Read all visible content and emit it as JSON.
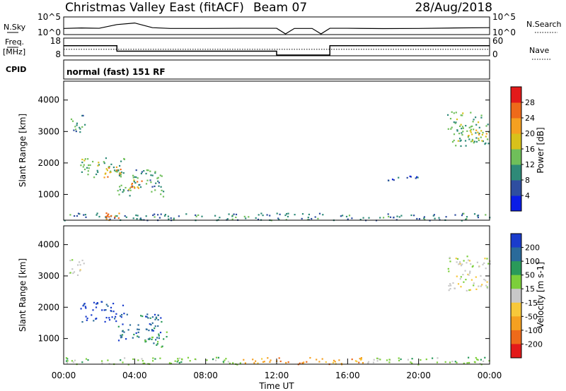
{
  "header": {
    "station": "Christmas Valley East (fitACF)",
    "beam": "Beam 07",
    "date": "28/Aug/2018",
    "cpid_label": "CPID",
    "cpid_value": "normal (fast) 151 RF"
  },
  "side_labels": {
    "nsky": "N.Sky",
    "nsearch": "N.Search",
    "freq": "Freq.",
    "freq_unit": "[MHz]",
    "nave": "Nave"
  },
  "colors": {
    "noise_trace": "#000000",
    "frame": "#000000",
    "grid": "#000000"
  },
  "chart_data": [
    {
      "type": "line",
      "name": "noise",
      "left_ticks": [
        "10^5",
        "10^0"
      ],
      "right_ticks": [
        "10^5",
        "10^0"
      ],
      "x": [
        0,
        1,
        2,
        3,
        4,
        5,
        6,
        8,
        10,
        12,
        12.5,
        13,
        14,
        14.5,
        15,
        16,
        18,
        20,
        22,
        24
      ],
      "y": [
        0.35,
        0.38,
        0.36,
        0.6,
        0.7,
        0.4,
        0.35,
        0.35,
        0.36,
        0.36,
        0.0,
        0.35,
        0.35,
        0.0,
        0.36,
        0.36,
        0.34,
        0.35,
        0.38,
        0.4
      ]
    },
    {
      "type": "line",
      "name": "frequency",
      "left_ticks": [
        "18",
        "8"
      ],
      "right_ticks": [
        "60",
        "0"
      ],
      "freq_x": [
        0,
        3,
        3,
        12,
        12,
        15,
        15,
        24
      ],
      "freq_y": [
        14,
        14,
        10.5,
        10.5,
        8,
        8,
        14,
        14
      ],
      "nave_level": 0.55
    },
    {
      "type": "heatmap",
      "name": "power",
      "xlabel": "",
      "ylabel": "Slant Range [km]",
      "xlim": [
        0,
        24
      ],
      "ylim": [
        180,
        4600
      ],
      "y_ticks": [
        1000,
        2000,
        3000,
        4000
      ],
      "colorbar_label": "Power [dB]",
      "colorbar_ticks": [
        4,
        8,
        12,
        16,
        20,
        24,
        28
      ],
      "colorbar_range": [
        0,
        32
      ],
      "colorbar_colors": [
        "#0a1de6",
        "#2e4ea0",
        "#2e8a78",
        "#6fbf5a",
        "#d8c11a",
        "#f5a020",
        "#ee6a1a",
        "#e31a1a"
      ],
      "patches": [
        {
          "t0": 0.3,
          "t1": 1.2,
          "r0": 2950,
          "r1": 3550,
          "v": 10
        },
        {
          "t0": 0.9,
          "t1": 3.4,
          "r0": 1550,
          "r1": 2200,
          "v": 13
        },
        {
          "t0": 2.2,
          "t1": 3.2,
          "r0": 1550,
          "r1": 1900,
          "v": 23
        },
        {
          "t0": 3.0,
          "t1": 5.6,
          "r0": 950,
          "r1": 1800,
          "v": 11
        },
        {
          "t0": 3.6,
          "t1": 4.6,
          "r0": 1150,
          "r1": 1500,
          "v": 22
        },
        {
          "t0": 21.6,
          "t1": 24.0,
          "r0": 2550,
          "r1": 3650,
          "v": 13
        },
        {
          "t0": 22.6,
          "t1": 23.8,
          "r0": 2800,
          "r1": 3250,
          "v": 19
        },
        {
          "t0": 18.2,
          "t1": 20.0,
          "r0": 1450,
          "r1": 1600,
          "v": 5
        },
        {
          "t0": 0.0,
          "t1": 24.0,
          "r0": 190,
          "r1": 420,
          "v": 9
        },
        {
          "t0": 2.3,
          "t1": 3.1,
          "r0": 200,
          "r1": 430,
          "v": 24
        }
      ]
    },
    {
      "type": "heatmap",
      "name": "velocity",
      "xlabel": "Time UT",
      "ylabel": "Slant Range [km]",
      "xlim": [
        0,
        24
      ],
      "ylim": [
        180,
        4600
      ],
      "x_ticks": [
        "00:00",
        "04:00",
        "08:00",
        "12:00",
        "16:00",
        "20:00",
        "00:00"
      ],
      "y_ticks": [
        1000,
        2000,
        3000,
        4000
      ],
      "colorbar_label": "Velocity [m s-1]",
      "colorbar_ticks": [
        "200",
        "100",
        "50",
        "15",
        "-15",
        "-50",
        "-100",
        "-200"
      ],
      "colorbar_colors": [
        "#1a3ccc",
        "#2a6a9a",
        "#2a9a5a",
        "#7ccf3a",
        "#c8c8c8",
        "#f7c83a",
        "#f5a020",
        "#ee6a1a",
        "#e31a1a"
      ],
      "patches": [
        {
          "t0": 0.3,
          "t1": 1.2,
          "r0": 2950,
          "r1": 3550,
          "v": 4
        },
        {
          "t0": 0.9,
          "t1": 3.4,
          "r0": 1550,
          "r1": 2200,
          "v": 0
        },
        {
          "t0": 3.0,
          "t1": 5.6,
          "r0": 950,
          "r1": 1800,
          "v": 1
        },
        {
          "t0": 4.5,
          "t1": 5.8,
          "r0": 750,
          "r1": 1250,
          "v": 2
        },
        {
          "t0": 21.6,
          "t1": 24.0,
          "r0": 2550,
          "r1": 3650,
          "v": 4
        },
        {
          "t0": 0.0,
          "t1": 10.0,
          "r0": 190,
          "r1": 420,
          "v": 3
        },
        {
          "t0": 10.0,
          "t1": 17.0,
          "r0": 190,
          "r1": 420,
          "v": 6
        },
        {
          "t0": 17.0,
          "t1": 24.0,
          "r0": 190,
          "r1": 420,
          "v": 3
        }
      ]
    }
  ]
}
